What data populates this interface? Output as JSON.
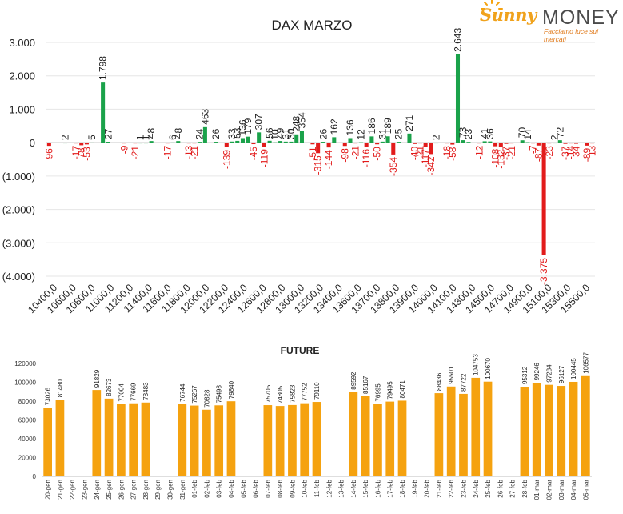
{
  "logo": {
    "brand_a": "Sunny",
    "brand_b": "MONEY",
    "tagline": "Facciamo luce sui mercati"
  },
  "colors": {
    "positive": "#1aa24a",
    "negative": "#e21b1b",
    "bar": "#f5a20f",
    "text": "#222222"
  },
  "chart_data": [
    {
      "type": "bar",
      "title": "DAX MARZO",
      "ylim": [
        -4000,
        3000
      ],
      "yticks": [
        "(4.000)",
        "(3.000)",
        "(2.000)",
        "(1.000)",
        "0",
        "1.000",
        "2.000",
        "3.000"
      ],
      "x_tick_labels": [
        "10400,0",
        "10600,0",
        "10800,0",
        "11000,0",
        "11200,0",
        "11400,0",
        "11600,0",
        "11800,0",
        "12000,0",
        "12200,0",
        "12400,0",
        "12600,0",
        "12800,0",
        "13000,0",
        "13200,0",
        "13400,0",
        "13600,0",
        "13700,0",
        "13800,0",
        "13900,0",
        "14000,0",
        "14100,0",
        "14300,0",
        "14500,0",
        "14700,0",
        "14900,0",
        "15100,0",
        "15300,0",
        "15500,0"
      ],
      "values": [
        -96,
        0,
        0,
        2,
        0,
        -17,
        -78,
        -53,
        5,
        0,
        1798,
        27,
        0,
        0,
        -9,
        0,
        -21,
        1,
        1,
        48,
        0,
        0,
        -17,
        6,
        48,
        0,
        -13,
        -21,
        24,
        463,
        0,
        26,
        0,
        -139,
        33,
        53,
        136,
        179,
        -45,
        307,
        -119,
        56,
        10,
        49,
        31,
        30,
        248,
        354,
        0,
        -51,
        -315,
        26,
        -144,
        162,
        0,
        -98,
        136,
        -21,
        12,
        -116,
        186,
        -50,
        31,
        189,
        -354,
        25,
        0,
        271,
        -40,
        -21,
        -117,
        -342,
        2,
        0,
        -18,
        -58,
        2643,
        73,
        23,
        0,
        -12,
        41,
        36,
        -108,
        -132,
        -37,
        -21,
        0,
        70,
        14,
        -7,
        -87,
        -3375,
        -23,
        2,
        72,
        -37,
        -14,
        -34,
        0,
        -89,
        -13
      ],
      "grid": true
    },
    {
      "type": "bar",
      "title": "FUTURE",
      "ylim": [
        0,
        120000
      ],
      "yticks": [
        "0",
        "20000",
        "40000",
        "60000",
        "80000",
        "100000",
        "120000"
      ],
      "categories": [
        "20-gen",
        "21-gen",
        "22-gen",
        "23-gen",
        "24-gen",
        "25-gen",
        "26-gen",
        "27-gen",
        "28-gen",
        "29-gen",
        "30-gen",
        "31-gen",
        "01-feb",
        "02-feb",
        "03-feb",
        "04-feb",
        "05-feb",
        "06-feb",
        "07-feb",
        "08-feb",
        "09-feb",
        "10-feb",
        "11-feb",
        "12-feb",
        "13-feb",
        "14-feb",
        "15-feb",
        "16-feb",
        "17-feb",
        "18-feb",
        "19-feb",
        "20-feb",
        "21-feb",
        "22-feb",
        "23-feb",
        "24-feb",
        "25-feb",
        "26-feb",
        "27-feb",
        "28-feb",
        "01-mar",
        "02-mar",
        "03-mar",
        "04-mar",
        "05-mar"
      ],
      "values": [
        73026,
        81480,
        null,
        null,
        91829,
        82673,
        77004,
        77669,
        78483,
        null,
        null,
        76744,
        75267,
        70828,
        75498,
        79840,
        null,
        null,
        75705,
        74805,
        75823,
        77752,
        79110,
        null,
        null,
        89592,
        85167,
        76995,
        79495,
        80471,
        null,
        null,
        88436,
        95501,
        87722,
        104753,
        100670,
        null,
        null,
        95312,
        99246,
        97284,
        96127,
        100445,
        106577
      ],
      "grid": false
    }
  ]
}
